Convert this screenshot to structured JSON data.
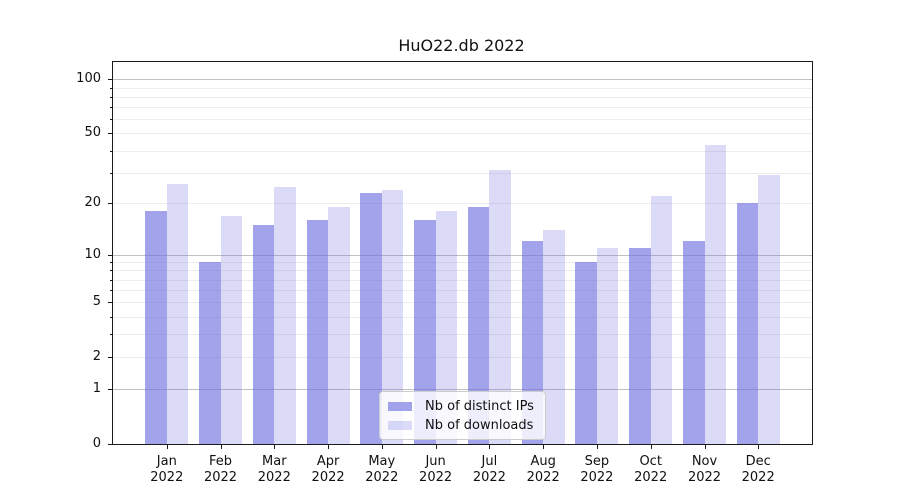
{
  "chart_data": {
    "type": "bar",
    "title": "HuO22.db 2022",
    "categories": [
      "Jan",
      "Feb",
      "Mar",
      "Apr",
      "May",
      "Jun",
      "Jul",
      "Aug",
      "Sep",
      "Oct",
      "Nov",
      "Dec"
    ],
    "x_tick_year": "2022",
    "series": [
      {
        "name": "Nb of distinct IPs",
        "values": [
          18,
          9,
          15,
          16,
          23,
          16,
          19,
          12,
          9,
          11,
          12,
          20
        ],
        "color": "rgba(113,113,226,0.65)"
      },
      {
        "name": "Nb of downloads",
        "values": [
          26,
          17,
          25,
          19,
          24,
          18,
          31,
          14,
          11,
          22,
          43,
          29
        ],
        "color": "rgba(113,113,226,0.25)"
      }
    ],
    "y_axis": {
      "scale": "log10(value+1)",
      "tick_labels": [
        0,
        1,
        2,
        5,
        10,
        20,
        50,
        100
      ],
      "decade_gridlines": [
        1,
        10,
        100
      ],
      "minor_gridlines": [
        2,
        3,
        4,
        5,
        6,
        7,
        8,
        9,
        20,
        30,
        40,
        50,
        60,
        70,
        80,
        90
      ],
      "range_max": 124
    },
    "legend": {
      "position": "lower center"
    },
    "grid": true,
    "colors": {
      "axis": "#1a1a1a",
      "grid_major": "#c0c0c0",
      "grid_minor": "#ececec"
    }
  }
}
